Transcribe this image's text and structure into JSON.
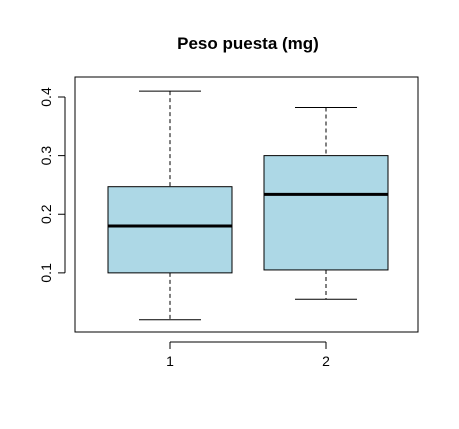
{
  "chart_data": {
    "type": "boxplot",
    "title": "Peso puesta (mg)",
    "xlabel": "",
    "ylabel": "",
    "categories": [
      "1",
      "2"
    ],
    "ylim": [
      0.0,
      0.44
    ],
    "yticks": [
      0.1,
      0.2,
      0.3,
      0.4
    ],
    "ytick_labels": [
      "0.1",
      "0.2",
      "0.3",
      "0.4"
    ],
    "box_fill": "#ADD8E6",
    "boxes": [
      {
        "category": "1",
        "whisker_low": 0.02,
        "q1": 0.1,
        "median": 0.18,
        "q3": 0.247,
        "whisker_high": 0.41
      },
      {
        "category": "2",
        "whisker_low": 0.055,
        "q1": 0.105,
        "median": 0.234,
        "q3": 0.3,
        "whisker_high": 0.382
      }
    ],
    "grid": false,
    "legend": "none"
  }
}
